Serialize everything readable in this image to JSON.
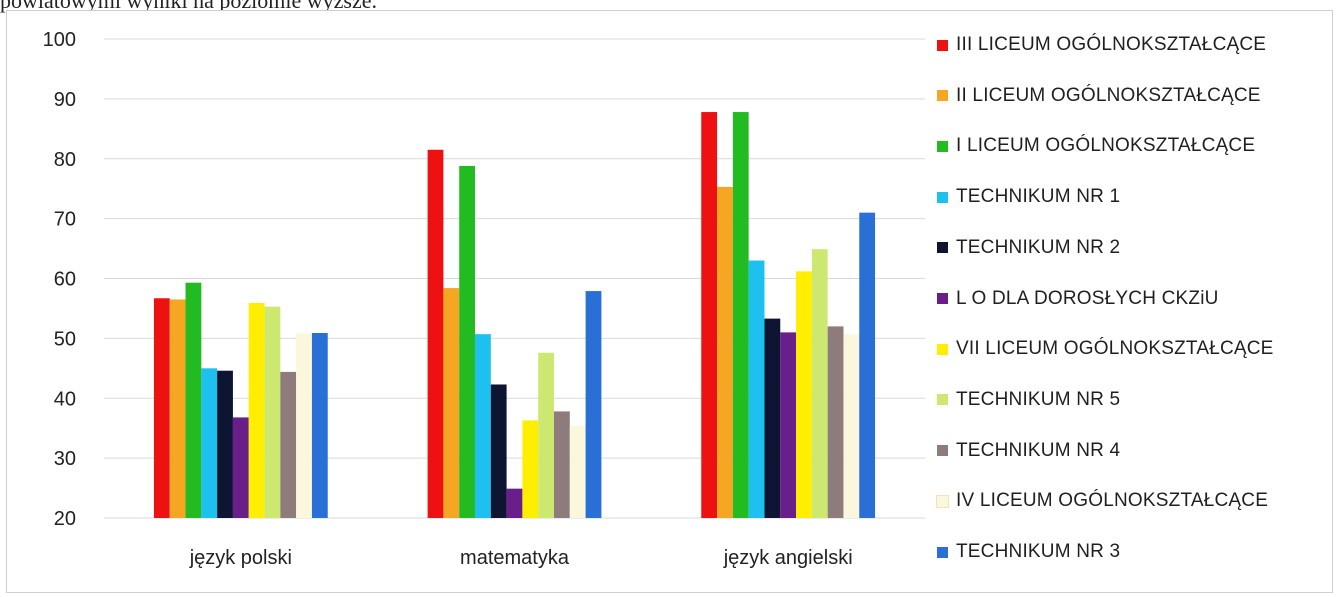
{
  "page_text": "powiatowymi wyniki na poziomie wyższe.",
  "chart_data": {
    "type": "bar",
    "categories": [
      "język polski",
      "matematyka",
      "język angielski"
    ],
    "ylim": [
      20,
      100
    ],
    "yticks": [
      20,
      30,
      40,
      50,
      60,
      70,
      80,
      90,
      100
    ],
    "grid": true,
    "legend_position": "right",
    "series": [
      {
        "name": "III LICEUM OGÓLNOKSZTAŁCĄCE",
        "color": "#ee1111",
        "values": [
          56.7,
          81.5,
          87.8
        ]
      },
      {
        "name": "II LICEUM OGÓLNOKSZTAŁCĄCE",
        "color": "#f5a623",
        "values": [
          56.5,
          58.4,
          75.3
        ]
      },
      {
        "name": "I LICEUM OGÓLNOKSZTAŁCĄCE",
        "color": "#22bb22",
        "values": [
          59.3,
          78.8,
          87.8
        ]
      },
      {
        "name": "TECHNIKUM NR 1",
        "color": "#1ec0f0",
        "values": [
          45.0,
          50.7,
          63.0
        ]
      },
      {
        "name": "TECHNIKUM NR 2",
        "color": "#0e1533",
        "values": [
          44.6,
          42.3,
          53.3
        ]
      },
      {
        "name": "L O DLA DOROSŁYCH CKZiU",
        "color": "#6a1e8a",
        "values": [
          36.8,
          24.9,
          51.0
        ]
      },
      {
        "name": "VII LICEUM OGÓLNOKSZTAŁCĄCE",
        "color": "#ffee00",
        "values": [
          55.9,
          36.3,
          61.2
        ]
      },
      {
        "name": "TECHNIKUM NR 5",
        "color": "#cde870",
        "values": [
          55.3,
          47.6,
          64.9
        ]
      },
      {
        "name": "TECHNIKUM NR 4",
        "color": "#8e7c7c",
        "values": [
          44.4,
          37.8,
          52.0
        ]
      },
      {
        "name": "IV LICEUM OGÓLNOKSZTAŁCĄCE",
        "color": "#fbf7dc",
        "values": [
          50.8,
          35.4,
          50.7
        ]
      },
      {
        "name": "TECHNIKUM NR 3",
        "color": "#2a6fd6",
        "values": [
          50.9,
          57.9,
          71.0
        ]
      }
    ]
  }
}
